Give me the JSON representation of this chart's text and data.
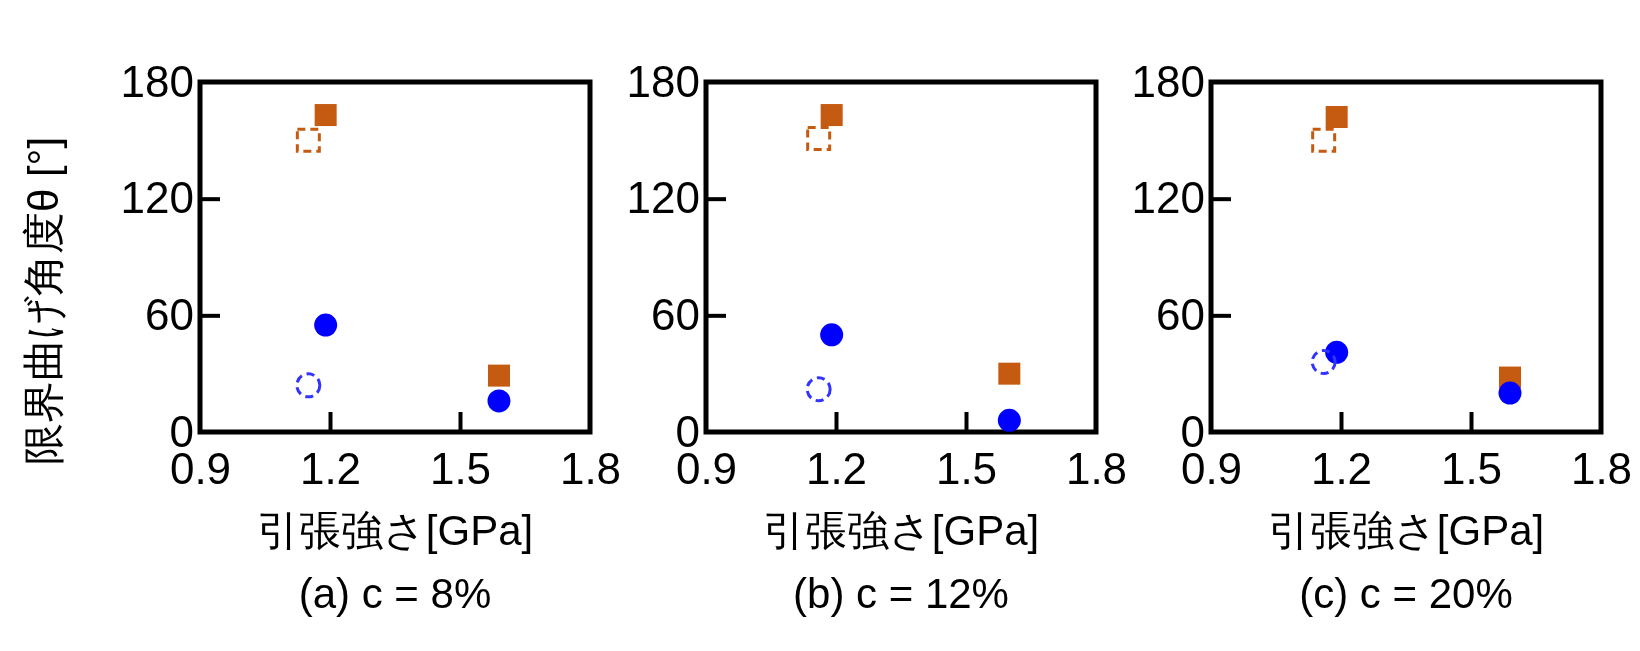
{
  "chart_data": [
    {
      "type": "scatter",
      "title": "(a) c = 8%",
      "xlabel": "引張強さ[GPa]",
      "ylabel": "限界曲げ角度θ [°]",
      "xlim": [
        0.9,
        1.8
      ],
      "xticks": [
        0.9,
        1.2,
        1.5,
        1.8
      ],
      "ylim": [
        0,
        180
      ],
      "yticks": [
        0,
        60,
        120,
        180
      ],
      "grid": false,
      "series": [
        {
          "color": "#c55a11",
          "marker": "square",
          "line_style": "solid",
          "x": [
            1.19,
            1.59
          ],
          "values": [
            163,
            29
          ]
        },
        {
          "color": "#c55a11",
          "marker": "square",
          "line_style": "dashed",
          "x": [
            1.15
          ],
          "values": [
            150
          ]
        },
        {
          "color": "#0000ff",
          "marker": "circle",
          "line_style": "solid",
          "x": [
            1.19,
            1.59
          ],
          "values": [
            55,
            16
          ]
        },
        {
          "color": "#3333ff",
          "marker": "circle",
          "line_style": "dashed",
          "x": [
            1.15
          ],
          "values": [
            24
          ]
        }
      ]
    },
    {
      "type": "scatter",
      "title": "(b) c = 12%",
      "xlabel": "引張強さ[GPa]",
      "xlim": [
        0.9,
        1.8
      ],
      "xticks": [
        0.9,
        1.2,
        1.5,
        1.8
      ],
      "ylim": [
        0,
        180
      ],
      "yticks": [
        0,
        60,
        120,
        180
      ],
      "grid": false,
      "series": [
        {
          "color": "#c55a11",
          "marker": "square",
          "line_style": "solid",
          "x": [
            1.19,
            1.6
          ],
          "values": [
            163,
            30
          ]
        },
        {
          "color": "#c55a11",
          "marker": "square",
          "line_style": "dashed",
          "x": [
            1.16
          ],
          "values": [
            151
          ]
        },
        {
          "color": "#0000ff",
          "marker": "circle",
          "line_style": "solid",
          "x": [
            1.19,
            1.6
          ],
          "values": [
            50,
            6
          ]
        },
        {
          "color": "#3333ff",
          "marker": "circle",
          "line_style": "dashed",
          "x": [
            1.16
          ],
          "values": [
            22
          ]
        }
      ]
    },
    {
      "type": "scatter",
      "title": "(c) c = 20%",
      "xlabel": "引張強さ[GPa]",
      "xlim": [
        0.9,
        1.8
      ],
      "xticks": [
        0.9,
        1.2,
        1.5,
        1.8
      ],
      "ylim": [
        0,
        180
      ],
      "yticks": [
        0,
        60,
        120,
        180
      ],
      "grid": false,
      "series": [
        {
          "color": "#c55a11",
          "marker": "square",
          "line_style": "solid",
          "x": [
            1.19,
            1.59
          ],
          "values": [
            162,
            28
          ]
        },
        {
          "color": "#c55a11",
          "marker": "square",
          "line_style": "dashed",
          "x": [
            1.16
          ],
          "values": [
            150
          ]
        },
        {
          "color": "#0000ff",
          "marker": "circle",
          "line_style": "solid",
          "x": [
            1.19,
            1.59
          ],
          "values": [
            41,
            20
          ]
        },
        {
          "color": "#3333ff",
          "marker": "circle",
          "line_style": "dashed",
          "x": [
            1.16
          ],
          "values": [
            36
          ]
        }
      ]
    }
  ]
}
